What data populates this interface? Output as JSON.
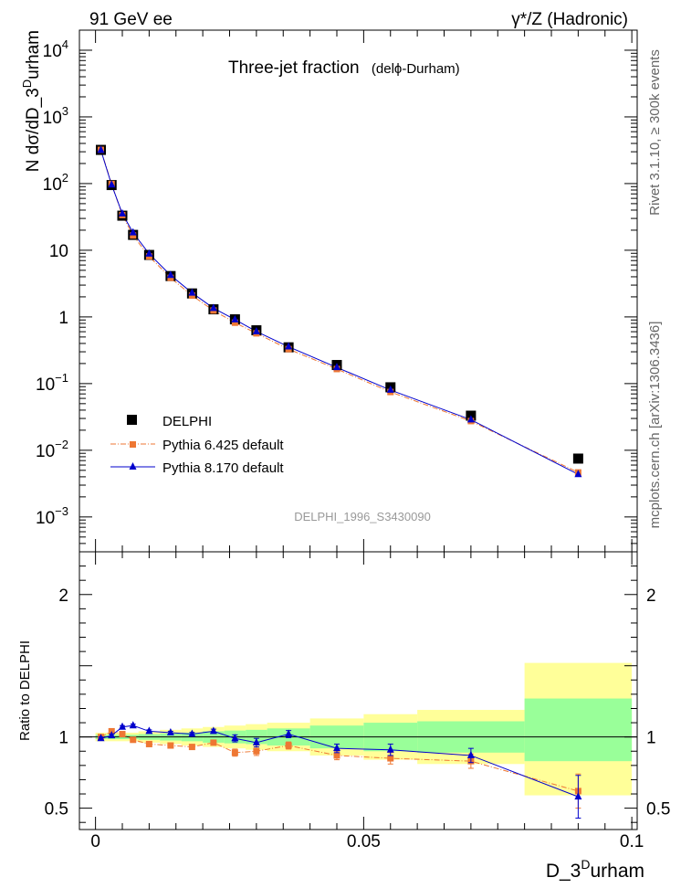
{
  "header": {
    "left": "91 GeV ee",
    "right": "γ*/Z (Hadronic)"
  },
  "side_labels": {
    "rivet": "Rivet 3.1.10, ≥ 300k events",
    "mcplots": "mcplots.cern.ch [arXiv:1306.3436]"
  },
  "chart_data": {
    "type": "line",
    "title": "Three-jet fraction",
    "subtitle": "(delϕ-Durham)",
    "watermark": "DELPHI_1996_S3430090",
    "xlabel": "D_3^Durham",
    "ylabel": "N dσ/dD_3^Durham",
    "ratio_ylabel": "Ratio to DELPHI",
    "xlim": [
      -0.003,
      0.101
    ],
    "ylim_log": [
      0.0003,
      20000
    ],
    "ratio_ylim": [
      0.35,
      2.3
    ],
    "x_ticks": [
      0,
      0.05,
      0.1
    ],
    "x_tick_labels": [
      "0",
      "0.05",
      "0.1"
    ],
    "y_ticks": [
      {
        "base": "10",
        "exp": "4"
      },
      {
        "base": "10",
        "exp": "3"
      },
      {
        "base": "10",
        "exp": "2"
      },
      {
        "base": "10",
        "exp": ""
      },
      {
        "base": "1",
        "exp": ""
      },
      {
        "base": "10",
        "exp": "−1"
      },
      {
        "base": "10",
        "exp": "−2"
      },
      {
        "base": "10",
        "exp": "−3"
      }
    ],
    "ratio_ticks": [
      2,
      1,
      0.5
    ],
    "ratio_tick_labels": [
      "2",
      "1",
      "0.5"
    ],
    "legend": [
      {
        "name": "DELPHI",
        "color": "#000000",
        "marker": "square"
      },
      {
        "name": "Pythia 6.425 default",
        "color": "#ee7733",
        "marker": "small-square"
      },
      {
        "name": "Pythia 8.170 default",
        "color": "#0000cc",
        "marker": "triangle"
      }
    ],
    "data": {
      "x": [
        0.001,
        0.003,
        0.005,
        0.007,
        0.01,
        0.014,
        0.018,
        0.022,
        0.026,
        0.03,
        0.036,
        0.045,
        0.055,
        0.07,
        0.09
      ],
      "y": [
        320,
        95,
        33,
        17,
        8.5,
        4.1,
        2.25,
        1.3,
        0.92,
        0.63,
        0.35,
        0.19,
        0.088,
        0.033,
        0.0075
      ],
      "bands": [
        {
          "x0": 0.0,
          "x1": 0.008,
          "green": [
            0.985,
            1.015
          ],
          "yellow": [
            0.97,
            1.03
          ]
        },
        {
          "x0": 0.008,
          "x1": 0.012,
          "green": [
            0.98,
            1.02
          ],
          "yellow": [
            0.96,
            1.04
          ]
        },
        {
          "x0": 0.012,
          "x1": 0.016,
          "green": [
            0.975,
            1.025
          ],
          "yellow": [
            0.95,
            1.05
          ]
        },
        {
          "x0": 0.016,
          "x1": 0.02,
          "green": [
            0.97,
            1.03
          ],
          "yellow": [
            0.94,
            1.06
          ]
        },
        {
          "x0": 0.02,
          "x1": 0.024,
          "green": [
            0.96,
            1.04
          ],
          "yellow": [
            0.93,
            1.07
          ]
        },
        {
          "x0": 0.024,
          "x1": 0.028,
          "green": [
            0.955,
            1.045
          ],
          "yellow": [
            0.92,
            1.08
          ]
        },
        {
          "x0": 0.028,
          "x1": 0.032,
          "green": [
            0.95,
            1.05
          ],
          "yellow": [
            0.91,
            1.09
          ]
        },
        {
          "x0": 0.032,
          "x1": 0.04,
          "green": [
            0.94,
            1.06
          ],
          "yellow": [
            0.9,
            1.1
          ]
        },
        {
          "x0": 0.04,
          "x1": 0.05,
          "green": [
            0.92,
            1.08
          ],
          "yellow": [
            0.87,
            1.13
          ]
        },
        {
          "x0": 0.05,
          "x1": 0.06,
          "green": [
            0.9,
            1.1
          ],
          "yellow": [
            0.84,
            1.16
          ]
        },
        {
          "x0": 0.06,
          "x1": 0.08,
          "green": [
            0.89,
            1.11
          ],
          "yellow": [
            0.81,
            1.19
          ]
        },
        {
          "x0": 0.08,
          "x1": 0.1,
          "green": [
            0.83,
            1.27
          ],
          "yellow": [
            0.59,
            1.52
          ]
        }
      ]
    },
    "series": [
      {
        "name": "Pythia 6.425 default",
        "ratio": [
          1.0,
          1.04,
          1.02,
          0.98,
          0.95,
          0.94,
          0.93,
          0.96,
          0.89,
          0.9,
          0.94,
          0.87,
          0.85,
          0.83,
          0.62
        ],
        "ratio_err": [
          0.01,
          0.01,
          0.01,
          0.01,
          0.01,
          0.01,
          0.012,
          0.015,
          0.025,
          0.03,
          0.025,
          0.03,
          0.04,
          0.05,
          0.12
        ]
      },
      {
        "name": "Pythia 8.170 default",
        "ratio": [
          0.99,
          1.01,
          1.07,
          1.08,
          1.04,
          1.03,
          1.02,
          1.04,
          0.99,
          0.96,
          1.02,
          0.92,
          0.91,
          0.87,
          0.58
        ],
        "ratio_err": [
          0.01,
          0.01,
          0.01,
          0.01,
          0.01,
          0.01,
          0.012,
          0.015,
          0.025,
          0.03,
          0.025,
          0.03,
          0.04,
          0.05,
          0.15
        ]
      }
    ]
  }
}
